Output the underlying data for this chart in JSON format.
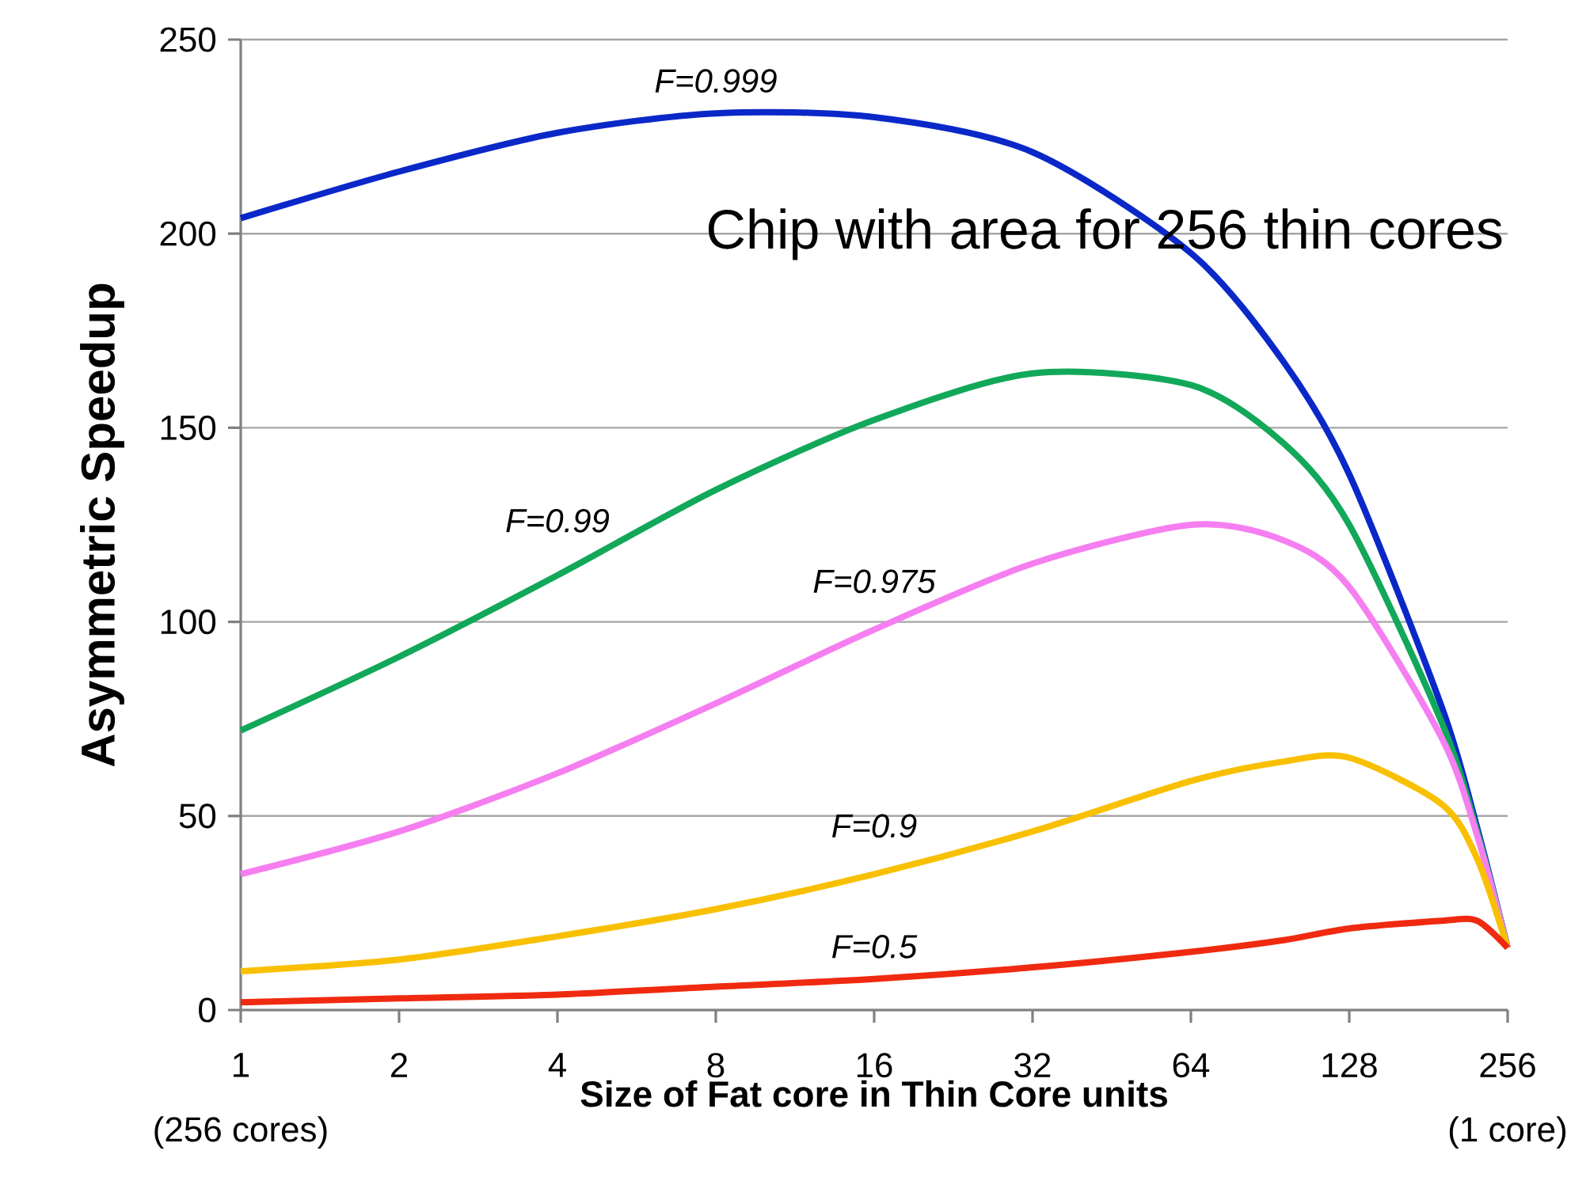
{
  "chart_data": {
    "type": "line",
    "xlabel": "Size of Fat core in Thin Core units",
    "ylabel": "Asymmetric Speedup",
    "x": [
      1,
      2,
      4,
      8,
      16,
      32,
      64,
      96,
      128,
      192,
      224,
      256
    ],
    "series": [
      {
        "name": "F=0.999",
        "color": "#0a28c8",
        "values": [
          204,
          216,
          226,
          231,
          230,
          221,
          195,
          167,
          138,
          78,
          47,
          16
        ]
      },
      {
        "name": "F=0.99",
        "color": "#12a85a",
        "values": [
          72,
          91,
          112,
          134,
          152,
          164,
          161,
          146,
          125,
          74,
          46,
          16
        ]
      },
      {
        "name": "F=0.975",
        "color": "#f57ff0",
        "values": [
          35,
          46,
          61,
          79,
          98,
          115,
          125,
          121,
          109,
          70,
          45,
          16
        ]
      },
      {
        "name": "F=0.9",
        "color": "#f8c000",
        "values": [
          10,
          13,
          19,
          26,
          35,
          46,
          59,
          64,
          65,
          53,
          39,
          16
        ]
      },
      {
        "name": "F=0.5",
        "color": "#f02a10",
        "values": [
          2,
          3,
          4,
          6,
          8,
          11,
          15,
          18,
          21,
          23,
          23,
          16
        ]
      }
    ],
    "log": "x",
    "xlim": [
      1,
      256
    ],
    "ylim": [
      0,
      250
    ],
    "xticks": [
      1,
      2,
      4,
      8,
      16,
      32,
      64,
      128,
      256
    ],
    "yticks": [
      0,
      50,
      100,
      150,
      200,
      250
    ],
    "grid": "y",
    "marker": "none",
    "line_style": "solid",
    "annotations": [
      "Chip with area for 256 thin cores",
      "(256 cores)",
      "(1 core)"
    ]
  }
}
